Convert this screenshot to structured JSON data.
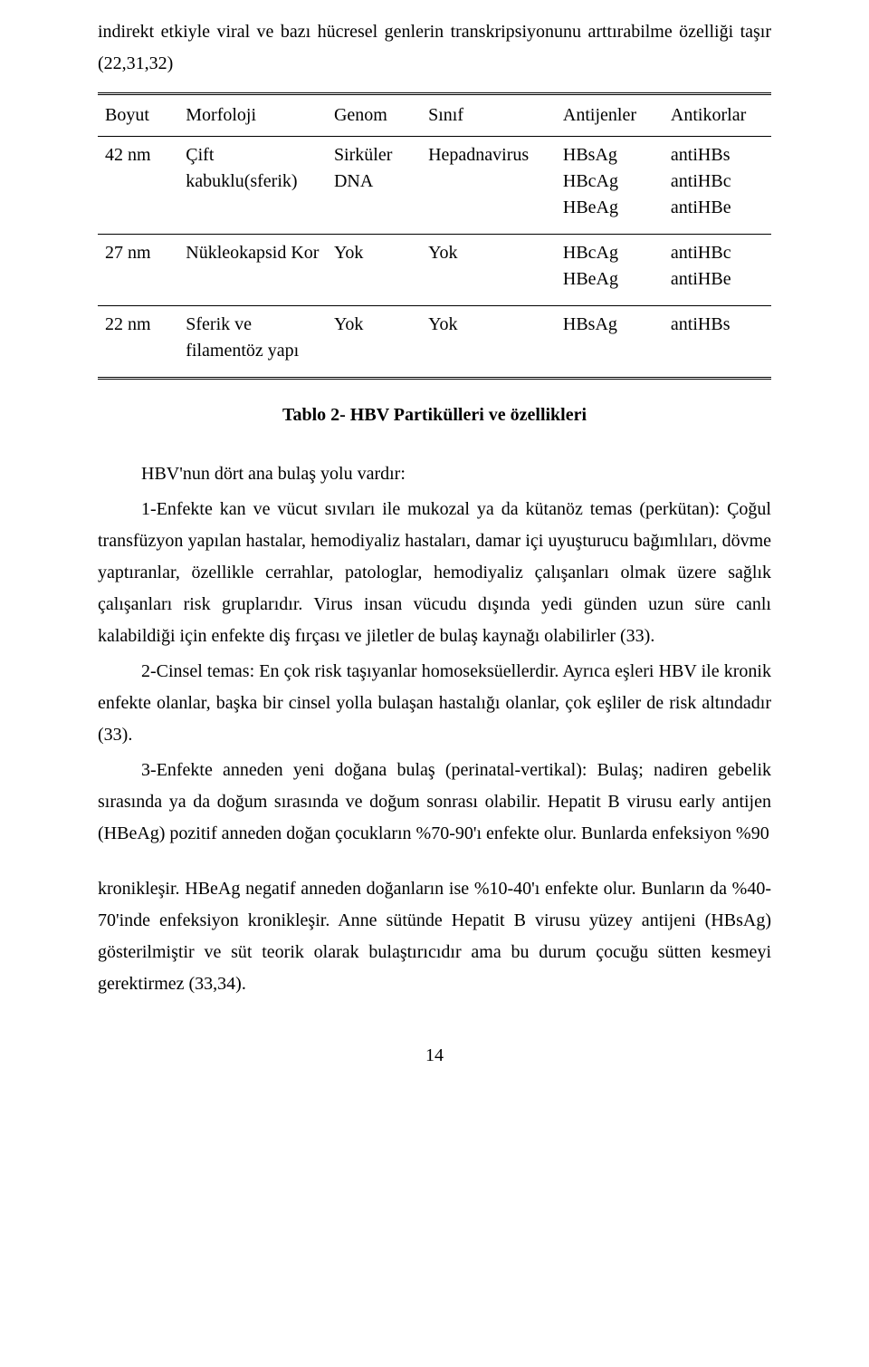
{
  "intro": {
    "line1": "indirekt etkiyle viral ve bazı hücresel genlerin transkripsiyonunu arttırabilme özelliği taşır (22,31,32)"
  },
  "table": {
    "type": "table",
    "columns": [
      "Boyut",
      "Morfoloji",
      "Genom",
      "Sınıf",
      "Antijenler",
      "Antikorlar"
    ],
    "col_widths_pct": [
      12,
      22,
      14,
      20,
      16,
      16
    ],
    "rows": [
      [
        "42 nm",
        "Çift kabuklu(sferik)",
        "Sirküler DNA",
        "Hepadnavirus",
        "HBsAg\nHBcAg\nHBeAg",
        "antiHBs\nantiHBc\nantiHBe"
      ],
      [
        "27 nm",
        "Nükleokapsid Kor",
        "Yok",
        "Yok",
        "HBcAg\nHBeAg",
        "antiHBc\nantiHBe"
      ],
      [
        "22 nm",
        "Sferik ve filamentöz yapı",
        "Yok",
        "Yok",
        "HBsAg",
        "antiHBs"
      ]
    ],
    "caption": "Tablo 2- HBV Partikülleri  ve  özellikleri",
    "border_color": "#000000",
    "background_color": "#ffffff",
    "font_size_pt": 15
  },
  "body": {
    "p1": "HBV'nun dört ana bulaş yolu vardır:",
    "p2": "1-Enfekte kan ve vücut sıvıları ile mukozal ya da kütanöz temas (perkütan): Çoğul transfüzyon yapılan hastalar, hemodiyaliz hastaları, damar içi uyuşturucu bağımlıları, dövme yaptıranlar, özellikle cerrahlar, patologlar, hemodiyaliz çalışanları olmak üzere sağlık çalışanları risk gruplarıdır. Virus insan vücudu dışında yedi günden uzun süre canlı kalabildiği için enfekte diş fırçası ve jiletler de bulaş kaynağı olabilirler (33).",
    "p3": "2-Cinsel temas: En çok risk taşıyanlar homoseksüellerdir. Ayrıca eşleri HBV ile kronik enfekte olanlar, başka bir cinsel yolla bulaşan hastalığı olanlar, çok eşliler de risk altındadır (33).",
    "p4": "3-Enfekte anneden yeni doğana bulaş (perinatal-vertikal): Bulaş; nadiren gebelik sırasında ya da doğum sırasında ve doğum sonrası olabilir. Hepatit B virusu early antijen (HBeAg) pozitif anneden doğan çocukların %70-90'ı enfekte olur. Bunlarda enfeksiyon %90",
    "p5": "kronikleşir. HBeAg negatif anneden doğanların ise %10-40'ı enfekte olur. Bunların da %40-70'inde enfeksiyon kronikleşir. Anne sütünde Hepatit B virusu yüzey antijeni (HBsAg) gösterilmiştir ve süt teorik olarak bulaştırıcıdır ama bu durum çocuğu sütten kesmeyi gerektirmez (33,34)."
  },
  "page_number": "14",
  "colors": {
    "text": "#000000",
    "background": "#ffffff"
  }
}
